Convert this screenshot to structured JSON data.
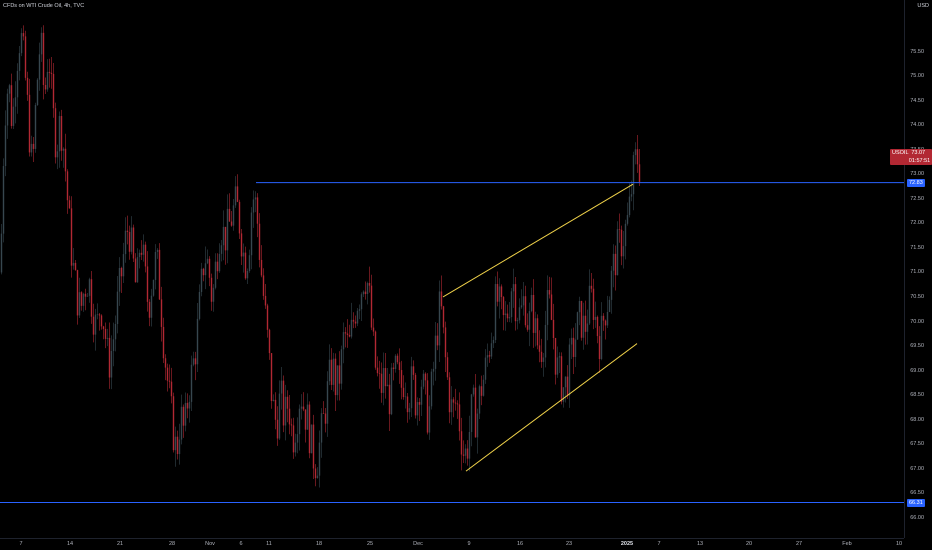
{
  "legend": {
    "text": "CFDs on WTI Crude Oil, 4h, TVC"
  },
  "currency_label": "USD",
  "price_axis": {
    "min": 65.75,
    "max": 76.35,
    "ticks": [
      "66.00",
      "66.50",
      "67.00",
      "67.50",
      "68.00",
      "68.50",
      "69.00",
      "69.50",
      "70.00",
      "70.50",
      "71.00",
      "71.50",
      "72.00",
      "72.50",
      "73.00",
      "73.50",
      "74.00",
      "74.50",
      "75.00",
      "75.50"
    ]
  },
  "time_axis": {
    "labels": [
      {
        "text": "7",
        "bold": false
      },
      {
        "text": "14",
        "bold": false
      },
      {
        "text": "21",
        "bold": false
      },
      {
        "text": "28",
        "bold": false
      },
      {
        "text": "Nov",
        "bold": false
      },
      {
        "text": "6",
        "bold": false
      },
      {
        "text": "11",
        "bold": false
      },
      {
        "text": "18",
        "bold": false
      },
      {
        "text": "25",
        "bold": false
      },
      {
        "text": "Dec",
        "bold": false
      },
      {
        "text": "9",
        "bold": false
      },
      {
        "text": "16",
        "bold": false
      },
      {
        "text": "23",
        "bold": false
      },
      {
        "text": "2025",
        "bold": true
      },
      {
        "text": "7",
        "bold": false
      },
      {
        "text": "13",
        "bold": false
      },
      {
        "text": "20",
        "bold": false
      },
      {
        "text": "27",
        "bold": false
      },
      {
        "text": "Feb",
        "bold": false
      },
      {
        "text": "10",
        "bold": false
      }
    ]
  },
  "price_tags": {
    "symbol": {
      "text": "USOIL  73.07\n           01:57:51",
      "color": "#b22833"
    },
    "resistance": {
      "text": "72.83",
      "value": 72.83,
      "color": "#2962ff"
    },
    "support": {
      "text": "66.31",
      "value": 66.31,
      "color": "#2962ff"
    }
  },
  "drawings": {
    "resistance_line": {
      "price": 72.83,
      "color": "#2962ff"
    },
    "support_line": {
      "price": 66.31,
      "color": "#2962ff"
    },
    "channel_upper": {
      "color": "#f0d24a",
      "from_price": 70.5,
      "to_price": 72.8
    },
    "channel_lower": {
      "color": "#f0d24a",
      "from_price": 66.95,
      "to_price": 69.55
    }
  },
  "colors": {
    "up_candle": "#37474f",
    "down_candle": "#b22833",
    "background": "#000000"
  },
  "chart_data": {
    "type": "candlestick",
    "title": "CFDs on WTI Crude Oil, 4h, TVC",
    "xlabel": "",
    "ylabel": "USD",
    "ylim": [
      65.75,
      76.35
    ],
    "grid": false,
    "close_path": [
      [
        0,
        71.0
      ],
      [
        4,
        74.2
      ],
      [
        8,
        74.9
      ],
      [
        12,
        74.0
      ],
      [
        16,
        75.3
      ],
      [
        20,
        75.9
      ],
      [
        24,
        75.2
      ],
      [
        28,
        74.1
      ],
      [
        32,
        73.0
      ],
      [
        36,
        74.7
      ],
      [
        40,
        75.8
      ],
      [
        44,
        74.5
      ],
      [
        48,
        75.6
      ],
      [
        52,
        74.3
      ],
      [
        56,
        73.6
      ],
      [
        60,
        74.1
      ],
      [
        64,
        73.4
      ],
      [
        68,
        72.2
      ],
      [
        72,
        71.2
      ],
      [
        76,
        70.6
      ],
      [
        80,
        70.2
      ],
      [
        84,
        70.7
      ],
      [
        88,
        70.9
      ],
      [
        92,
        70.3
      ],
      [
        96,
        69.8
      ],
      [
        100,
        70.4
      ],
      [
        104,
        69.9
      ],
      [
        108,
        69.1
      ],
      [
        112,
        69.5
      ],
      [
        116,
        70.2
      ],
      [
        120,
        70.8
      ],
      [
        124,
        71.5
      ],
      [
        128,
        72.0
      ],
      [
        132,
        71.3
      ],
      [
        136,
        70.6
      ],
      [
        140,
        71.8
      ],
      [
        144,
        71.0
      ],
      [
        148,
        70.3
      ],
      [
        152,
        70.9
      ],
      [
        156,
        71.3
      ],
      [
        160,
        70.5
      ],
      [
        164,
        69.4
      ],
      [
        168,
        68.6
      ],
      [
        172,
        67.9
      ],
      [
        176,
        67.3
      ],
      [
        180,
        68.1
      ],
      [
        184,
        67.7
      ],
      [
        188,
        68.6
      ],
      [
        192,
        69.0
      ],
      [
        196,
        69.6
      ],
      [
        200,
        70.5
      ],
      [
        204,
        71.4
      ],
      [
        208,
        71.1
      ],
      [
        212,
        70.4
      ],
      [
        216,
        71.3
      ],
      [
        220,
        72.0
      ],
      [
        224,
        71.7
      ],
      [
        228,
        71.9
      ],
      [
        232,
        72.2
      ],
      [
        236,
        72.4
      ],
      [
        240,
        71.9
      ],
      [
        244,
        71.2
      ],
      [
        248,
        71.4
      ],
      [
        252,
        72.6
      ],
      [
        256,
        72.3
      ],
      [
        260,
        71.2
      ],
      [
        264,
        70.3
      ],
      [
        268,
        69.4
      ],
      [
        272,
        68.3
      ],
      [
        276,
        67.9
      ],
      [
        280,
        68.5
      ],
      [
        284,
        68.0
      ],
      [
        288,
        68.4
      ],
      [
        292,
        67.6
      ],
      [
        296,
        68.0
      ],
      [
        300,
        68.6
      ],
      [
        304,
        68.2
      ],
      [
        308,
        67.9
      ],
      [
        312,
        67.3
      ],
      [
        316,
        67.1
      ],
      [
        320,
        67.6
      ],
      [
        324,
        68.1
      ],
      [
        328,
        68.7
      ],
      [
        332,
        69.1
      ],
      [
        336,
        68.6
      ],
      [
        340,
        69.0
      ],
      [
        344,
        69.8
      ],
      [
        348,
        69.4
      ],
      [
        352,
        69.9
      ],
      [
        356,
        70.4
      ],
      [
        360,
        70.6
      ],
      [
        364,
        71.0
      ],
      [
        368,
        70.7
      ],
      [
        372,
        69.6
      ],
      [
        376,
        68.9
      ],
      [
        380,
        68.6
      ],
      [
        384,
        68.9
      ],
      [
        388,
        68.4
      ],
      [
        392,
        68.7
      ],
      [
        396,
        69.0
      ],
      [
        400,
        68.6
      ],
      [
        404,
        68.9
      ],
      [
        408,
        68.5
      ],
      [
        412,
        68.8
      ],
      [
        416,
        68.3
      ],
      [
        420,
        68.9
      ],
      [
        424,
        68.5
      ],
      [
        428,
        68.0
      ],
      [
        432,
        68.8
      ],
      [
        436,
        69.7
      ],
      [
        440,
        70.4
      ],
      [
        444,
        69.4
      ],
      [
        448,
        68.6
      ],
      [
        452,
        68.1
      ],
      [
        456,
        68.4
      ],
      [
        460,
        67.8
      ],
      [
        464,
        67.2
      ],
      [
        468,
        67.6
      ],
      [
        472,
        68.3
      ],
      [
        476,
        68.0
      ],
      [
        480,
        68.6
      ],
      [
        484,
        68.9
      ],
      [
        488,
        69.4
      ],
      [
        492,
        69.9
      ],
      [
        496,
        70.5
      ],
      [
        500,
        70.2
      ],
      [
        504,
        69.9
      ],
      [
        508,
        70.3
      ],
      [
        512,
        70.9
      ],
      [
        516,
        70.3
      ],
      [
        520,
        70.1
      ],
      [
        524,
        70.5
      ],
      [
        528,
        69.9
      ],
      [
        532,
        70.3
      ],
      [
        536,
        69.6
      ],
      [
        540,
        69.4
      ],
      [
        544,
        69.8
      ],
      [
        548,
        70.4
      ],
      [
        552,
        69.9
      ],
      [
        556,
        69.1
      ],
      [
        560,
        68.8
      ],
      [
        564,
        68.6
      ],
      [
        568,
        69.0
      ],
      [
        572,
        69.4
      ],
      [
        576,
        69.8
      ],
      [
        580,
        70.1
      ],
      [
        584,
        69.8
      ],
      [
        588,
        70.3
      ],
      [
        592,
        70.5
      ],
      [
        596,
        69.9
      ],
      [
        600,
        69.6
      ],
      [
        604,
        70.2
      ],
      [
        608,
        70.5
      ],
      [
        612,
        71.0
      ],
      [
        616,
        71.4
      ],
      [
        620,
        71.6
      ],
      [
        624,
        71.8
      ],
      [
        628,
        72.1
      ],
      [
        632,
        72.9
      ],
      [
        636,
        73.4
      ],
      [
        640,
        73.1
      ]
    ]
  }
}
